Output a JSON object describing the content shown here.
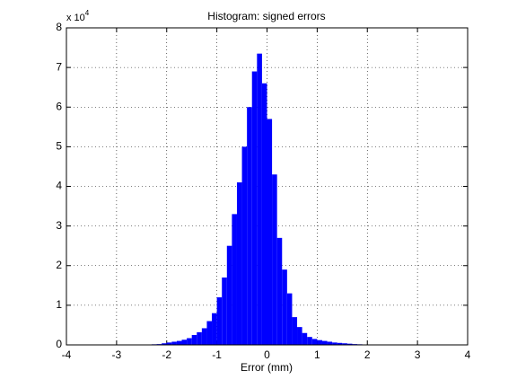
{
  "chart_data": {
    "type": "histogram",
    "title": "Histogram: signed errors",
    "x_label": "Error (mm)",
    "y_multiplier": {
      "base": "x 10",
      "exponent": "4"
    },
    "bins": [
      -4.0,
      -3.9,
      -3.8,
      -3.7,
      -3.6,
      -3.5,
      -3.4,
      -3.3,
      -3.2,
      -3.1,
      -3.0,
      -2.9,
      -2.8,
      -2.7,
      -2.6,
      -2.5,
      -2.4,
      -2.3,
      -2.2,
      -2.1,
      -2.0,
      -1.9,
      -1.8,
      -1.7,
      -1.6,
      -1.5,
      -1.4,
      -1.3,
      -1.2,
      -1.1,
      -1.0,
      -0.9,
      -0.8,
      -0.7,
      -0.6,
      -0.5,
      -0.4,
      -0.3,
      -0.2,
      -0.1,
      0.0,
      0.1,
      0.2,
      0.3,
      0.4,
      0.5,
      0.6,
      0.7,
      0.8,
      0.9,
      1.0,
      1.1,
      1.2,
      1.3,
      1.4,
      1.5,
      1.6,
      1.7,
      1.8,
      1.9,
      2.0,
      2.1,
      2.2,
      2.3,
      2.4,
      2.5,
      2.6,
      2.7,
      2.8,
      2.9,
      3.0,
      3.1,
      3.2,
      3.3,
      3.4,
      3.5,
      3.6,
      3.7,
      3.8,
      3.9,
      4.0
    ],
    "values": [
      0,
      0,
      0,
      0,
      0,
      0,
      0,
      0,
      0,
      0,
      0,
      0,
      0,
      0,
      0,
      0,
      0.01,
      0.015,
      0.02,
      0.04,
      0.06,
      0.08,
      0.1,
      0.13,
      0.17,
      0.25,
      0.32,
      0.42,
      0.6,
      0.8,
      1.2,
      1.7,
      2.5,
      3.3,
      4.1,
      5.0,
      6.0,
      6.9,
      7.35,
      6.6,
      5.7,
      4.3,
      2.7,
      1.9,
      1.3,
      0.7,
      0.45,
      0.3,
      0.2,
      0.15,
      0.12,
      0.1,
      0.08,
      0.06,
      0.05,
      0.04,
      0.03,
      0.02,
      0.015,
      0.01,
      0.005,
      0,
      0,
      0,
      0,
      0,
      0,
      0,
      0,
      0,
      0,
      0,
      0,
      0,
      0,
      0,
      0,
      0,
      0,
      0
    ],
    "color": "#0000ff",
    "xlim": [
      -4,
      4
    ],
    "xticks": [
      -4,
      -3,
      -2,
      -1,
      0,
      1,
      2,
      3,
      4
    ],
    "ylim": [
      0,
      8
    ],
    "yticks": [
      0,
      1,
      2,
      3,
      4,
      5,
      6,
      7,
      8
    ],
    "grid": true
  }
}
